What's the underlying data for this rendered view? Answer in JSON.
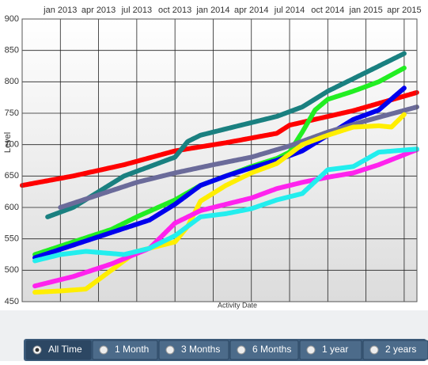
{
  "chart_data": {
    "type": "line",
    "y_label": "Level",
    "x_label": "Activity Date",
    "xlim": [
      "2012-10",
      "2015-05"
    ],
    "xticks": [
      {
        "value": "2013-01",
        "label": "jan 2013"
      },
      {
        "value": "2013-04",
        "label": "apr 2013"
      },
      {
        "value": "2013-07",
        "label": "jul 2013"
      },
      {
        "value": "2013-10",
        "label": "oct 2013"
      },
      {
        "value": "2014-01",
        "label": "jan 2014"
      },
      {
        "value": "2014-04",
        "label": "apr 2014"
      },
      {
        "value": "2014-07",
        "label": "jul 2014"
      },
      {
        "value": "2014-10",
        "label": "oct 2014"
      },
      {
        "value": "2015-01",
        "label": "jan 2015"
      },
      {
        "value": "2015-04",
        "label": "apr 2015"
      }
    ],
    "ylim": [
      450,
      900
    ],
    "yticks": [
      450,
      500,
      550,
      600,
      650,
      700,
      750,
      800,
      850,
      900
    ],
    "grid": true,
    "series": [
      {
        "color": "#ff0000",
        "x": [
          "2012-10",
          "2013-02",
          "2013-06",
          "2013-10",
          "2014-02",
          "2014-06",
          "2014-07",
          "2014-12",
          "2015-05"
        ],
        "values": [
          635,
          650,
          668,
          690,
          703,
          718,
          731,
          754,
          783
        ]
      },
      {
        "color": "#1a8080",
        "x": [
          "2012-12",
          "2013-02",
          "2013-04",
          "2013-06",
          "2013-08",
          "2013-10",
          "2013-11",
          "2013-12",
          "2014-02",
          "2014-04",
          "2014-06",
          "2014-08",
          "2014-10",
          "2014-12",
          "2015-02",
          "2015-04"
        ],
        "values": [
          585,
          600,
          625,
          650,
          665,
          680,
          705,
          715,
          725,
          735,
          745,
          760,
          785,
          805,
          825,
          845
        ]
      },
      {
        "color": "#22ee22",
        "x": [
          "2012-11",
          "2013-02",
          "2013-05",
          "2013-07",
          "2013-10",
          "2013-12",
          "2014-02",
          "2014-04",
          "2014-06",
          "2014-07",
          "2014-08",
          "2014-09",
          "2014-10",
          "2014-12",
          "2015-02",
          "2015-04"
        ],
        "values": [
          525,
          545,
          565,
          585,
          612,
          635,
          650,
          665,
          678,
          688,
          720,
          755,
          772,
          785,
          800,
          822
        ]
      },
      {
        "color": "#0000ee",
        "x": [
          "2012-11",
          "2013-02",
          "2013-05",
          "2013-08",
          "2013-10",
          "2013-12",
          "2014-02",
          "2014-04",
          "2014-06",
          "2014-08",
          "2014-10",
          "2014-12",
          "2015-02",
          "2015-04"
        ],
        "values": [
          520,
          540,
          560,
          580,
          605,
          635,
          650,
          663,
          675,
          690,
          715,
          740,
          755,
          790
        ]
      },
      {
        "color": "#6b6b9a",
        "x": [
          "2013-01",
          "2013-04",
          "2013-07",
          "2013-10",
          "2014-01",
          "2014-04",
          "2014-07",
          "2014-10",
          "2015-01",
          "2015-05"
        ],
        "values": [
          600,
          620,
          640,
          655,
          668,
          680,
          698,
          720,
          738,
          760
        ]
      },
      {
        "color": "#ffee00",
        "x": [
          "2012-11",
          "2013-01",
          "2013-03",
          "2013-05",
          "2013-07",
          "2013-09",
          "2013-10",
          "2013-11",
          "2013-12",
          "2014-02",
          "2014-04",
          "2014-06",
          "2014-08",
          "2014-10",
          "2014-12",
          "2015-02",
          "2015-03",
          "2015-04"
        ],
        "values": [
          465,
          467,
          470,
          500,
          530,
          540,
          545,
          570,
          610,
          635,
          655,
          670,
          700,
          715,
          728,
          730,
          728,
          748
        ]
      },
      {
        "color": "#ff22ee",
        "x": [
          "2012-11",
          "2013-02",
          "2013-05",
          "2013-08",
          "2013-10",
          "2013-12",
          "2014-02",
          "2014-04",
          "2014-06",
          "2014-08",
          "2014-10",
          "2014-12",
          "2015-02",
          "2015-05"
        ],
        "values": [
          475,
          490,
          510,
          535,
          575,
          595,
          605,
          615,
          630,
          640,
          648,
          655,
          668,
          692
        ]
      },
      {
        "color": "#22eeee",
        "x": [
          "2012-11",
          "2013-01",
          "2013-03",
          "2013-06",
          "2013-08",
          "2013-10",
          "2013-12",
          "2014-02",
          "2014-04",
          "2014-06",
          "2014-08",
          "2014-10",
          "2014-12",
          "2015-02",
          "2015-05"
        ],
        "values": [
          515,
          525,
          530,
          525,
          535,
          555,
          585,
          590,
          598,
          612,
          622,
          660,
          665,
          688,
          693
        ]
      }
    ]
  },
  "controls": {
    "options": [
      "All Time",
      "1 Month",
      "3 Months",
      "6 Months",
      "1 year",
      "2 years"
    ],
    "selected": 0
  }
}
